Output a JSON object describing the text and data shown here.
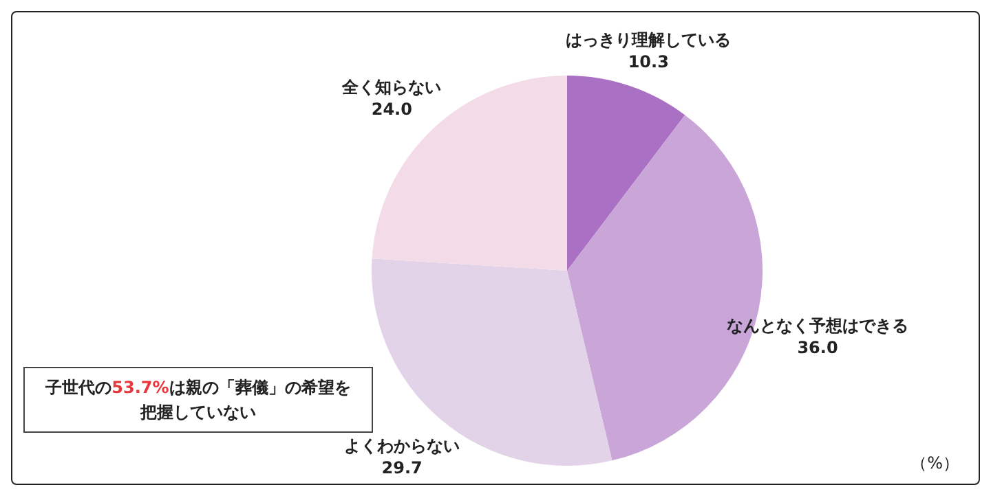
{
  "chart_data": {
    "type": "pie",
    "categories": [
      "はっきり理解している",
      "なんとなく予想はできる",
      "よくわからない",
      "全く知らない"
    ],
    "values": [
      10.3,
      36.0,
      29.7,
      24.0
    ],
    "colors": [
      "#a970c4",
      "#c9a5d8",
      "#e2d3e8",
      "#f3dce8"
    ],
    "value_labels": [
      "10.3",
      "36.0",
      "29.7",
      "24.0"
    ],
    "legend": false,
    "annotations": [
      "子世代の53.7%は親の「葬儀」の希望を把握していない",
      "（%）"
    ]
  }
}
